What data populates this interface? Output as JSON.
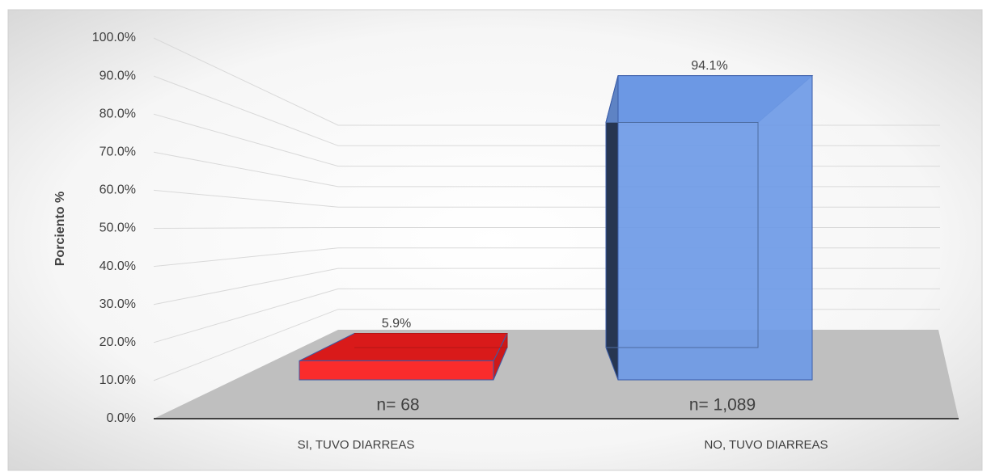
{
  "chart_data": {
    "type": "bar3d",
    "y_label": "Porciento %",
    "categories": [
      "SI, TUVO DIARREAS",
      "NO, TUVO DIARREAS"
    ],
    "values": [
      5.9,
      94.1
    ],
    "value_labels": [
      "5.9%",
      "94.1%"
    ],
    "colors": [
      "#ff1f1f",
      "#6e9ae6"
    ],
    "annotations": [
      "n= 68",
      "n= 1,089"
    ],
    "ylim": [
      0,
      100
    ],
    "yticks": [
      {
        "value": 0,
        "label": "0.0%"
      },
      {
        "value": 10,
        "label": "10.0%"
      },
      {
        "value": 20,
        "label": "20.0%"
      },
      {
        "value": 30,
        "label": "30.0%"
      },
      {
        "value": 40,
        "label": "40.0%"
      },
      {
        "value": 50,
        "label": "50.0%"
      },
      {
        "value": 60,
        "label": "60.0%"
      },
      {
        "value": 70,
        "label": "70.0%"
      },
      {
        "value": 80,
        "label": "80.0%"
      },
      {
        "value": 90,
        "label": "90.0%"
      },
      {
        "value": 100,
        "label": "100.0%"
      }
    ],
    "grid": true
  }
}
